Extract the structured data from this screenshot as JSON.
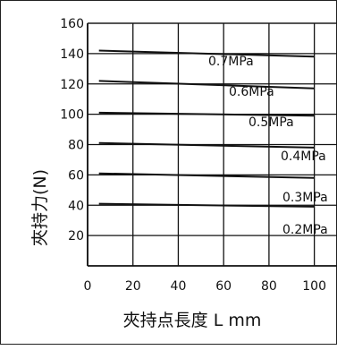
{
  "chart_data": {
    "type": "line",
    "title": "",
    "xlabel": "夾持点長度 L mm",
    "ylabel": "夾持力(N)",
    "xlim": [
      0,
      110
    ],
    "ylim": [
      0,
      160
    ],
    "x_ticks": [
      0,
      20,
      40,
      60,
      80,
      100
    ],
    "y_ticks": [
      20,
      40,
      60,
      80,
      100,
      120,
      140,
      160
    ],
    "grid": true,
    "series": [
      {
        "name": "0.7MPa",
        "x": [
          5,
          100
        ],
        "y": [
          142,
          138
        ]
      },
      {
        "name": "0.6MPa",
        "x": [
          5,
          100
        ],
        "y": [
          122,
          117
        ]
      },
      {
        "name": "0.5MPa",
        "x": [
          5,
          100
        ],
        "y": [
          101,
          99
        ]
      },
      {
        "name": "0.4MPa",
        "x": [
          5,
          100
        ],
        "y": [
          81,
          78
        ]
      },
      {
        "name": "0.3MPa",
        "x": [
          5,
          100
        ],
        "y": [
          61,
          58
        ]
      },
      {
        "name": "0.2MPa",
        "x": [
          5,
          100
        ],
        "y": [
          41,
          39
        ]
      }
    ]
  }
}
